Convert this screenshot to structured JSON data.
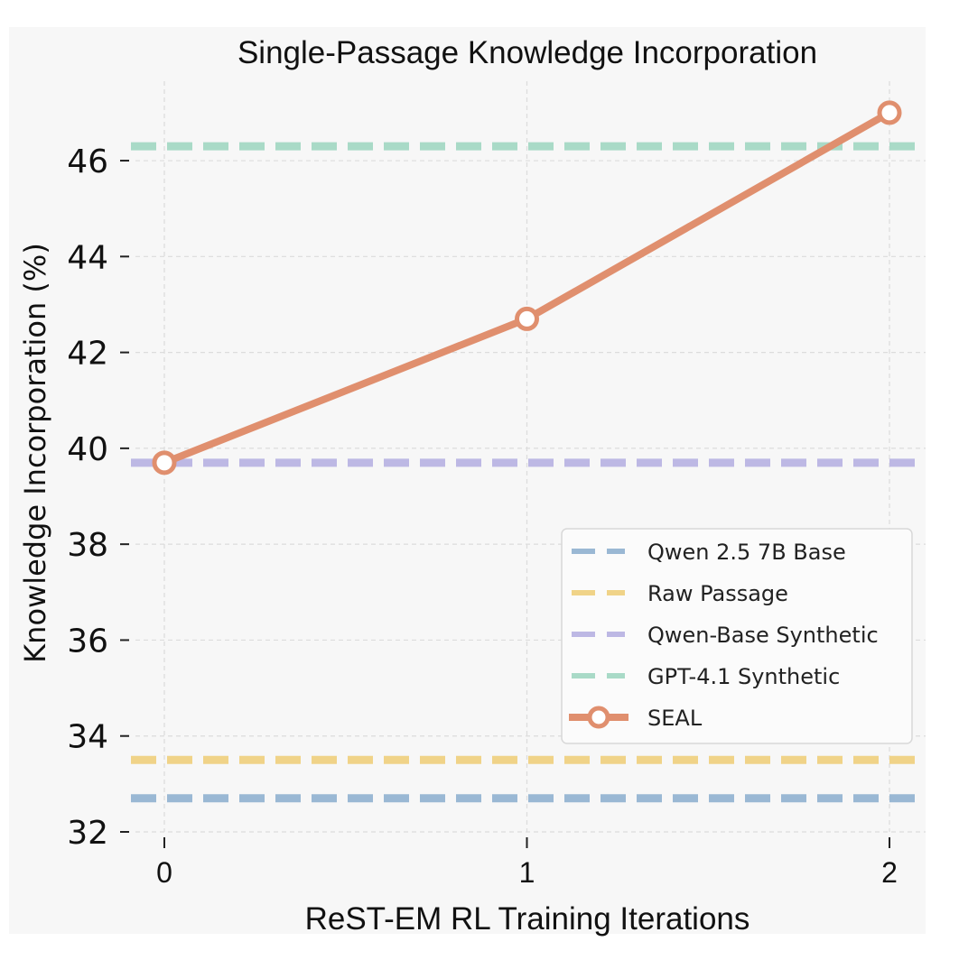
{
  "chart_data": {
    "type": "line",
    "title": "Single-Passage Knowledge Incorporation",
    "xlabel": "ReST-EM RL Training Iterations",
    "ylabel": "Knowledge Incorporation (%)",
    "xlim": [
      -0.07,
      2.1
    ],
    "ylim": [
      31.9,
      47.6
    ],
    "x_ticks": [
      0,
      1,
      2
    ],
    "x_tick_labels": [
      "0",
      "1",
      "2"
    ],
    "y_ticks": [
      32,
      34,
      36,
      38,
      40,
      42,
      44,
      46
    ],
    "y_tick_labels": [
      "32",
      "34",
      "36",
      "38",
      "40",
      "42",
      "44",
      "46"
    ],
    "grid": true,
    "legend_position": "center-right",
    "series": [
      {
        "name": "Qwen 2.5 7B Base",
        "kind": "hline",
        "value": 32.7,
        "color": "#9ab8d4",
        "style": "dashed"
      },
      {
        "name": "Raw Passage",
        "kind": "hline",
        "value": 33.5,
        "color": "#f0d388",
        "style": "dashed"
      },
      {
        "name": "Qwen-Base Synthetic",
        "kind": "hline",
        "value": 39.7,
        "color": "#bdb8e4",
        "style": "dashed"
      },
      {
        "name": "GPT-4.1 Synthetic",
        "kind": "hline",
        "value": 46.3,
        "color": "#a9dac7",
        "style": "dashed"
      },
      {
        "name": "SEAL",
        "kind": "line",
        "x": [
          0,
          1,
          2
        ],
        "values": [
          39.7,
          42.7,
          47.0
        ],
        "color": "#e08f6e",
        "style": "solid",
        "marker": "open-circle"
      }
    ]
  }
}
